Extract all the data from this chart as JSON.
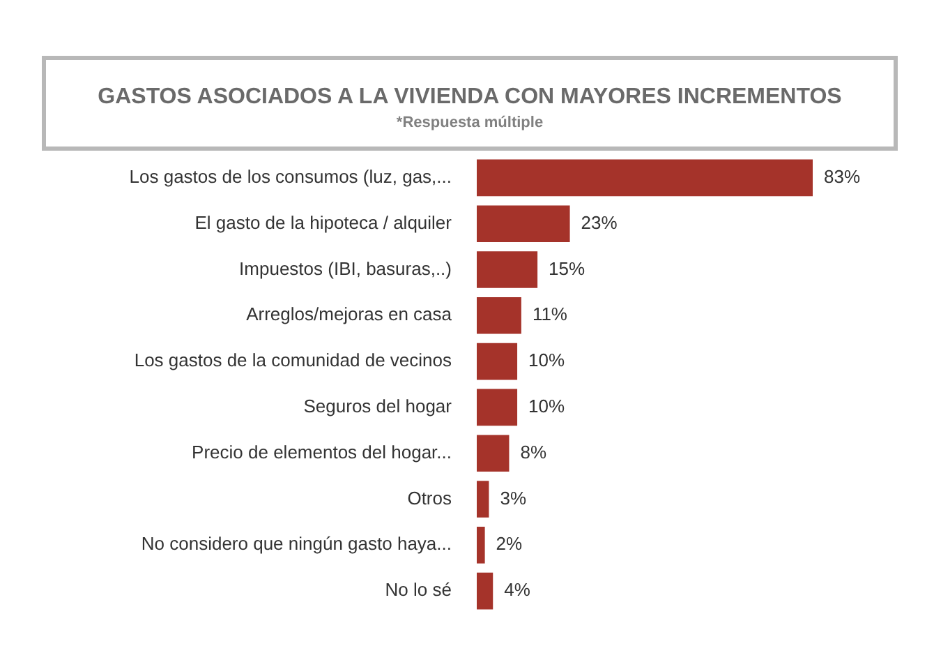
{
  "chart_data": {
    "type": "bar",
    "orientation": "horizontal",
    "title": "GASTOS ASOCIADOS A LA VIVIENDA CON MAYORES INCREMENTOS",
    "subtitle": "*Respuesta múltiple",
    "categories": [
      "Los gastos de los consumos (luz, gas,...",
      "El gasto de la hipoteca / alquiler",
      "Impuestos (IBI, basuras,..)",
      "Arreglos/mejoras en casa",
      "Los gastos de la comunidad de vecinos",
      "Seguros del hogar",
      "Precio de elementos del hogar...",
      "Otros",
      "No considero que ningún gasto haya...",
      "No lo sé"
    ],
    "values": [
      83,
      23,
      15,
      11,
      10,
      10,
      8,
      3,
      2,
      4
    ],
    "value_labels": [
      "83%",
      "23%",
      "15%",
      "11%",
      "10%",
      "10%",
      "8%",
      "3%",
      "2%",
      "4%"
    ],
    "color": "#a5332a",
    "grid": false,
    "legend": false
  }
}
